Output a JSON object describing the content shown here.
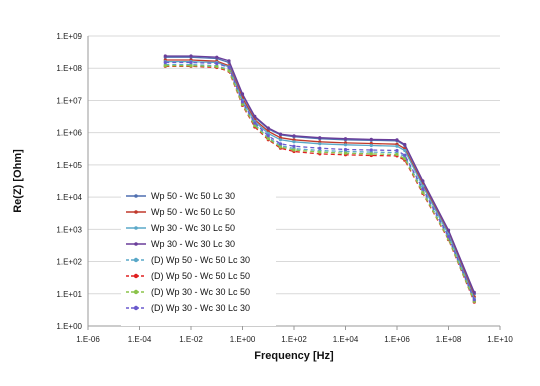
{
  "chart_data": {
    "type": "line",
    "title": "",
    "xlabel": "Frequency [Hz]",
    "ylabel": "Re(Z) [Ohm]",
    "x_scale": "log",
    "y_scale": "log",
    "xlim": [
      1e-06,
      10000000000.0
    ],
    "ylim": [
      1,
      1000000000.0
    ],
    "x_ticks": [
      "1.E-06",
      "1.E-04",
      "1.E-02",
      "1.E+00",
      "1.E+02",
      "1.E+04",
      "1.E+06",
      "1.E+08",
      "1.E+10"
    ],
    "y_ticks": [
      "1.E+00",
      "1.E+01",
      "1.E+02",
      "1.E+03",
      "1.E+04",
      "1.E+05",
      "1.E+06",
      "1.E+07",
      "1.E+08",
      "1.E+09"
    ],
    "grid": "horizontal",
    "legend_position": "lower-left",
    "x": [
      0.001,
      0.01,
      0.1,
      0.3,
      1,
      3,
      10,
      30,
      100,
      1000,
      10000,
      100000,
      1000000,
      2000000,
      10000000,
      100000000,
      1000000000
    ],
    "series": [
      {
        "name": "Wp 50 - Wc 50  Lc 30",
        "color": "#4f6fb0",
        "dash": "solid",
        "marker": "dot",
        "values": [
          220000000,
          220000000,
          200000000,
          150000000,
          15000000,
          3000000,
          1300000,
          850000,
          750000,
          650000,
          600000,
          580000,
          560000,
          400000,
          30000,
          900,
          10
        ]
      },
      {
        "name": "Wp 50 - Wc 50  Lc 50",
        "color": "#c0392b",
        "dash": "solid",
        "marker": "dot",
        "values": [
          180000000,
          180000000,
          165000000,
          120000000,
          12000000,
          2500000,
          1100000,
          700000,
          600000,
          520000,
          480000,
          460000,
          440000,
          320000,
          25000,
          750,
          8
        ]
      },
      {
        "name": "Wp 30 - Wc 30  Lc 50",
        "color": "#5aa8c8",
        "dash": "solid",
        "marker": "dot",
        "values": [
          160000000,
          160000000,
          150000000,
          110000000,
          10000000,
          2200000,
          950000,
          600000,
          520000,
          450000,
          420000,
          400000,
          380000,
          280000,
          22000,
          700,
          7
        ]
      },
      {
        "name": "Wp 30 - Wc 30  Lc 30",
        "color": "#6a3d9a",
        "dash": "solid",
        "marker": "dot",
        "values": [
          240000000,
          240000000,
          220000000,
          170000000,
          16000000,
          3200000,
          1400000,
          900000,
          800000,
          700000,
          650000,
          620000,
          600000,
          430000,
          32000,
          950,
          11
        ]
      },
      {
        "name": "(D) Wp 50 - Wc 50  Lc 30",
        "color": "#5aa8c8",
        "dash": "dashed",
        "marker": "dot",
        "values": [
          130000000,
          130000000,
          120000000,
          90000000,
          8000000,
          1800000,
          700000,
          400000,
          320000,
          280000,
          260000,
          250000,
          240000,
          180000,
          16000,
          550,
          6
        ]
      },
      {
        "name": "(D) Wp 50 - Wc 50  Lc 50",
        "color": "#e02020",
        "dash": "dashed",
        "marker": "dot",
        "values": [
          115000000,
          115000000,
          105000000,
          80000000,
          7000000,
          1500000,
          600000,
          330000,
          260000,
          220000,
          205000,
          195000,
          190000,
          140000,
          13000,
          480,
          5.5
        ]
      },
      {
        "name": "(D) Wp 30 - Wc 30  Lc 50",
        "color": "#8bc34a",
        "dash": "dashed",
        "marker": "dot",
        "values": [
          120000000,
          120000000,
          112000000,
          85000000,
          7500000,
          1650000,
          650000,
          360000,
          290000,
          250000,
          230000,
          220000,
          210000,
          155000,
          14000,
          500,
          5.8
        ]
      },
      {
        "name": "(D) Wp 30 - Wc 30  Lc 30",
        "color": "#6a5acd",
        "dash": "dashed",
        "marker": "dot",
        "values": [
          150000000,
          150000000,
          140000000,
          105000000,
          9000000,
          2000000,
          800000,
          450000,
          380000,
          330000,
          300000,
          290000,
          280000,
          200000,
          18000,
          600,
          6.5
        ]
      }
    ]
  }
}
